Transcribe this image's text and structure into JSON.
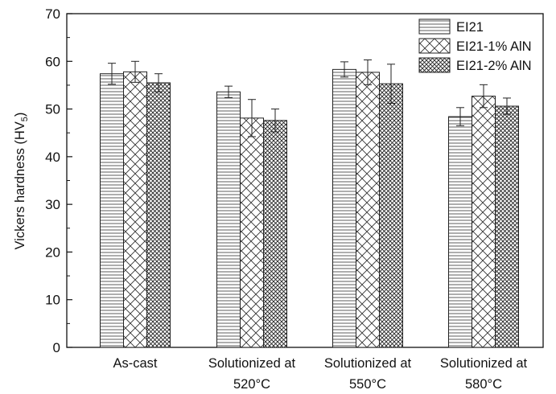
{
  "chart_data": {
    "type": "bar",
    "title": "",
    "xlabel": "",
    "ylabel": {
      "main": "Vickers hardness (HV",
      "sub": "5",
      "close": ")"
    },
    "ylim": [
      0,
      70
    ],
    "yticks": [
      0,
      10,
      20,
      30,
      40,
      50,
      60,
      70
    ],
    "categories": [
      {
        "line1": "As-cast",
        "line2": ""
      },
      {
        "line1": "Solutionized at",
        "line2": "520°C"
      },
      {
        "line1": "Solutionized at",
        "line2": "550°C"
      },
      {
        "line1": "Solutionized at",
        "line2": "580°C"
      }
    ],
    "series": [
      {
        "name": "EI21",
        "pattern": "horizontal-lines",
        "values": [
          57.4,
          53.6,
          58.3,
          48.4
        ],
        "errors": [
          2.2,
          1.2,
          1.6,
          1.9
        ]
      },
      {
        "name": "EI21-1% AlN",
        "pattern": "crosshatch",
        "values": [
          57.8,
          48.1,
          57.7,
          52.7
        ],
        "errors": [
          2.2,
          3.9,
          2.6,
          2.4
        ]
      },
      {
        "name": "EI21-2% AlN",
        "pattern": "dense-crosshatch",
        "values": [
          55.5,
          47.6,
          55.3,
          50.6
        ],
        "errors": [
          1.9,
          2.4,
          4.1,
          1.7
        ]
      }
    ],
    "grid": false,
    "legend_position": "top-right"
  }
}
